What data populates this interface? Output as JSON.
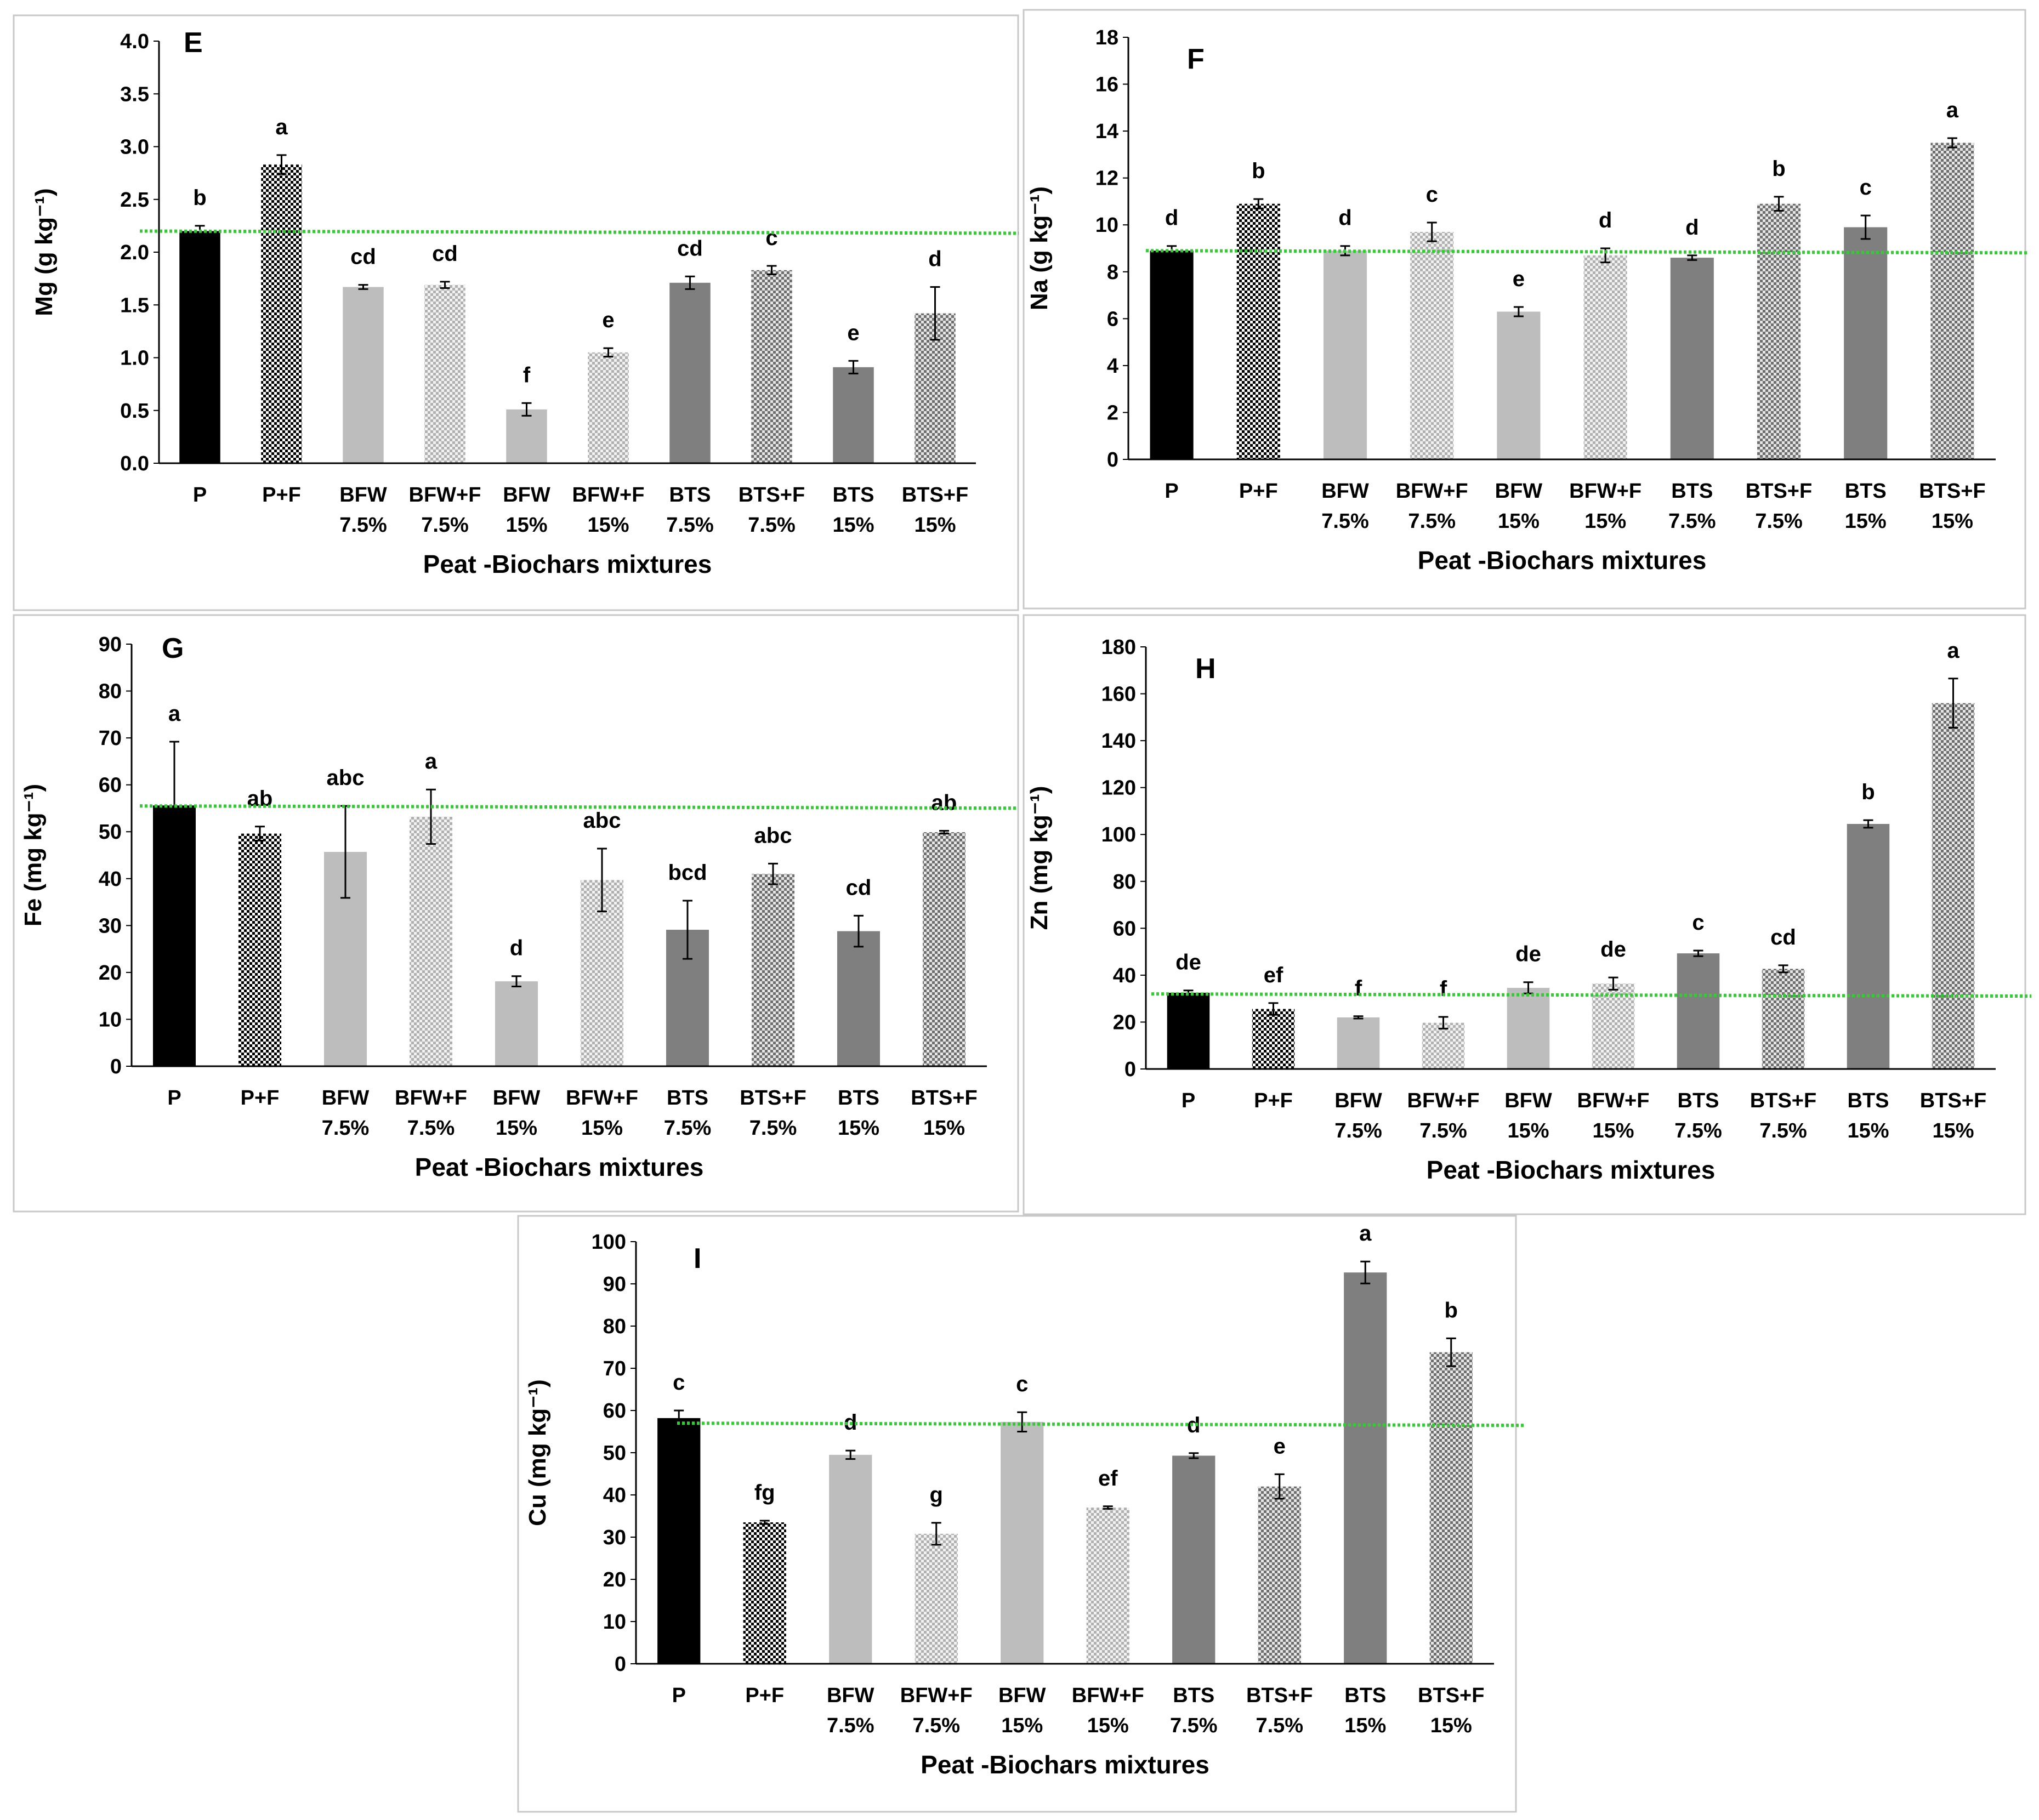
{
  "figure": {
    "xlabel": "Peat -Biochars mixtures"
  },
  "categories": [
    [
      "P",
      ""
    ],
    [
      "P+F",
      ""
    ],
    [
      "BFW",
      "7.5%"
    ],
    [
      "BFW+F",
      "7.5%"
    ],
    [
      "BFW",
      "15%"
    ],
    [
      "BFW+F",
      "15%"
    ],
    [
      "BTS",
      "7.5%"
    ],
    [
      "BTS+F",
      "7.5%"
    ],
    [
      "BTS",
      "15%"
    ],
    [
      "BTS+F",
      "15%"
    ]
  ],
  "colors": {
    "P": "#000000",
    "BFW": "#bdbdbd",
    "BTS": "#7f7f7f",
    "reference_line": "#33cc33"
  },
  "chart_data": [
    {
      "type": "bar",
      "letter": "E",
      "ylabel": "Mg (g kg⁻¹)",
      "xlabel": "Peat -Biochars mixtures",
      "ylim": [
        0,
        4.0
      ],
      "yticks": [
        "0.0",
        "0.5",
        "1.0",
        "1.5",
        "2.0",
        "2.5",
        "3.0",
        "3.5",
        "4.0"
      ],
      "values": [
        2.2,
        2.83,
        1.67,
        1.69,
        0.51,
        1.05,
        1.71,
        1.83,
        0.91,
        1.42
      ],
      "errors": [
        0.05,
        0.09,
        0.02,
        0.03,
        0.06,
        0.04,
        0.06,
        0.04,
        0.06,
        0.25
      ],
      "letters": [
        "b",
        "a",
        "cd",
        "cd",
        "f",
        "e",
        "cd",
        "c",
        "e",
        "d"
      ],
      "reference_line": 2.2
    },
    {
      "type": "bar",
      "letter": "F",
      "ylabel": "Na (g kg⁻¹)",
      "xlabel": "Peat -Biochars mixtures",
      "ylim": [
        0,
        18
      ],
      "yticks": [
        "0",
        "2",
        "4",
        "6",
        "8",
        "10",
        "12",
        "14",
        "16",
        "18"
      ],
      "values": [
        8.9,
        10.9,
        8.9,
        9.7,
        6.3,
        8.7,
        8.6,
        10.9,
        9.9,
        13.5
      ],
      "errors": [
        0.2,
        0.2,
        0.2,
        0.4,
        0.2,
        0.3,
        0.1,
        0.3,
        0.5,
        0.2
      ],
      "letters": [
        "d",
        "b",
        "d",
        "c",
        "e",
        "d",
        "d",
        "b",
        "c",
        "a"
      ],
      "reference_line": 8.9
    },
    {
      "type": "bar",
      "letter": "G",
      "ylabel": "Fe (mg kg⁻¹)",
      "xlabel": "Peat -Biochars mixtures",
      "ylim": [
        0,
        90
      ],
      "yticks": [
        "0",
        "10",
        "20",
        "30",
        "40",
        "50",
        "60",
        "70",
        "80",
        "90"
      ],
      "values": [
        55.6,
        49.6,
        45.7,
        53.2,
        18.1,
        39.7,
        29.1,
        41.0,
        28.8,
        49.9
      ],
      "errors": [
        13.6,
        1.5,
        9.8,
        5.8,
        1.1,
        6.7,
        6.2,
        2.2,
        3.3,
        0.3
      ],
      "letters": [
        "a",
        "ab",
        "abc",
        "a",
        "d",
        "abc",
        "bcd",
        "abc",
        "cd",
        "ab"
      ],
      "reference_line": 55.5
    },
    {
      "type": "bar",
      "letter": "H",
      "ylabel": "Zn (mg kg⁻¹)",
      "xlabel": "Peat -Biochars mixtures",
      "ylim": [
        0,
        180
      ],
      "yticks": [
        "0",
        "20",
        "40",
        "60",
        "80",
        "100",
        "120",
        "140",
        "160",
        "180"
      ],
      "values": [
        32.5,
        25.6,
        22.0,
        19.7,
        34.6,
        36.4,
        49.3,
        42.7,
        104.5,
        156.0
      ],
      "errors": [
        1.0,
        2.5,
        0.5,
        2.5,
        2.4,
        2.6,
        1.2,
        1.5,
        1.6,
        10.5
      ],
      "letters": [
        "de",
        "ef",
        "f",
        "f",
        "de",
        "de",
        "c",
        "cd",
        "b",
        "a"
      ],
      "reference_line": 32.0
    },
    {
      "type": "bar",
      "letter": "I",
      "ylabel": "Cu (mg kg⁻¹)",
      "xlabel": "Peat -Biochars mixtures",
      "ylim": [
        0,
        100
      ],
      "yticks": [
        "0",
        "10",
        "20",
        "30",
        "40",
        "50",
        "60",
        "70",
        "80",
        "90",
        "100"
      ],
      "values": [
        58.2,
        33.5,
        49.5,
        30.8,
        57.3,
        37.0,
        49.3,
        42.0,
        92.7,
        73.8
      ],
      "errors": [
        1.8,
        0.4,
        1.0,
        2.6,
        2.3,
        0.3,
        0.6,
        2.9,
        2.6,
        3.3
      ],
      "letters": [
        "c",
        "fg",
        "d",
        "g",
        "c",
        "ef",
        "d",
        "e",
        "a",
        "b"
      ],
      "reference_line": 57.0
    }
  ]
}
